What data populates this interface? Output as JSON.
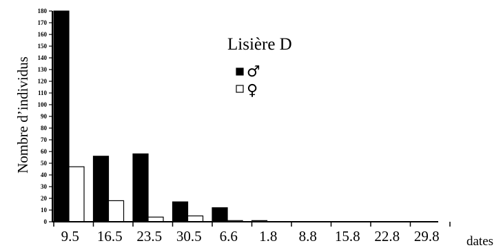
{
  "chart_data": {
    "type": "bar",
    "title": "Lisière D",
    "xlabel": "dates",
    "ylabel": "Nombre d’individus",
    "categories": [
      "9.5",
      "16.5",
      "23.5",
      "30.5",
      "6.6",
      "1.8",
      "8.8",
      "15.8",
      "22.8",
      "29.8"
    ],
    "series": [
      {
        "name": "♂",
        "color": "#000000",
        "values": [
          180,
          56,
          58,
          17,
          12,
          1,
          0,
          0,
          0,
          0
        ]
      },
      {
        "name": "♀",
        "color": "#ffffff",
        "values": [
          47,
          18,
          4,
          5,
          1,
          0,
          0,
          0,
          0,
          0
        ]
      }
    ],
    "ylim": [
      0,
      180
    ],
    "yticks": [
      0,
      10,
      20,
      30,
      40,
      50,
      60,
      70,
      80,
      90,
      100,
      110,
      120,
      130,
      140,
      150,
      160,
      170,
      180
    ],
    "grid": false,
    "legend_position": "top-center"
  }
}
